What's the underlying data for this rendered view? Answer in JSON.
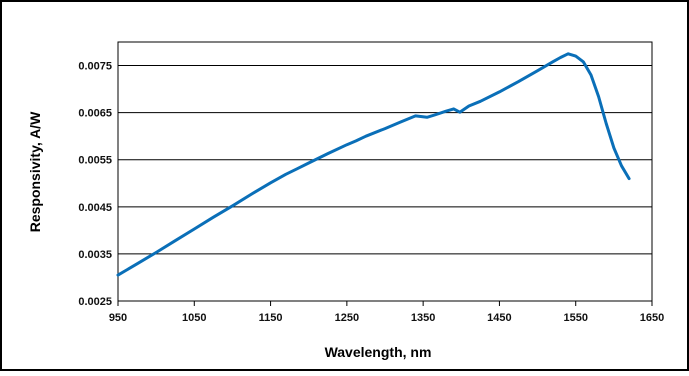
{
  "chart_data": {
    "type": "line",
    "title": "",
    "xlabel": "Wavelength, nm",
    "ylabel": "Responsivity, A/W",
    "xlim": [
      950,
      1650
    ],
    "ylim": [
      0.0025,
      0.008
    ],
    "xticks": [
      "950",
      "1050",
      "1150",
      "1250",
      "1350",
      "1450",
      "1550",
      "1650"
    ],
    "yticks": [
      "0.0025",
      "0.0035",
      "0.0045",
      "0.0055",
      "0.0065",
      "0.0075"
    ],
    "grid": "horizontal",
    "legend": "none",
    "colors": {
      "series": "#0a6fb8",
      "border": "#000000",
      "grid": "#000000",
      "background": "#ffffff"
    },
    "series": [
      {
        "x": [
          950,
          975,
          1000,
          1025,
          1050,
          1075,
          1100,
          1125,
          1150,
          1170,
          1185,
          1200,
          1225,
          1250,
          1262,
          1275,
          1300,
          1320,
          1340,
          1355,
          1365,
          1380,
          1390,
          1398,
          1410,
          1425,
          1450,
          1475,
          1500,
          1520,
          1530,
          1540,
          1550,
          1560,
          1570,
          1580,
          1590,
          1600,
          1610,
          1620
        ],
        "y": [
          0.00305,
          0.00329,
          0.00353,
          0.00378,
          0.00403,
          0.00428,
          0.00452,
          0.00477,
          0.00501,
          0.00519,
          0.00531,
          0.00543,
          0.00563,
          0.00582,
          0.0059,
          0.006,
          0.00616,
          0.0063,
          0.00643,
          0.0064,
          0.00645,
          0.00653,
          0.00658,
          0.00651,
          0.00664,
          0.00674,
          0.00694,
          0.00716,
          0.00739,
          0.00758,
          0.00767,
          0.00775,
          0.0077,
          0.00758,
          0.0073,
          0.00684,
          0.00627,
          0.00575,
          0.00537,
          0.0051
        ]
      }
    ]
  }
}
